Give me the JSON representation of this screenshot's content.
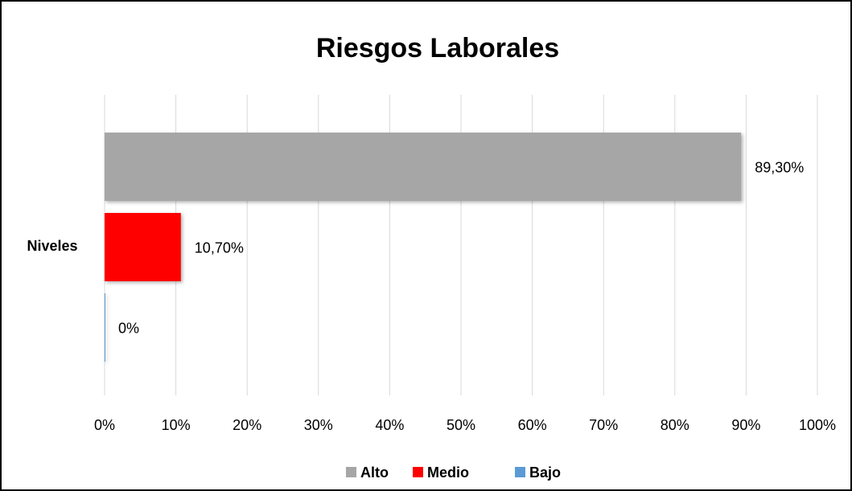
{
  "chart_data": {
    "type": "bar",
    "orientation": "horizontal",
    "title": "Riesgos Laborales",
    "categories": [
      "Niveles"
    ],
    "series": [
      {
        "name": "Alto",
        "color": "#a6a6a6",
        "values": [
          89.3
        ],
        "value_labels": [
          "89,30%"
        ]
      },
      {
        "name": "Medio",
        "color": "#ff0000",
        "values": [
          10.7
        ],
        "value_labels": [
          "10,70%"
        ]
      },
      {
        "name": "Bajo",
        "color": "#5b9bd5",
        "values": [
          0
        ],
        "value_labels": [
          "0%"
        ]
      }
    ],
    "xlim": [
      0,
      100
    ],
    "xticks": [
      {
        "value": 0,
        "label": "0%"
      },
      {
        "value": 10,
        "label": "10%"
      },
      {
        "value": 20,
        "label": "20%"
      },
      {
        "value": 30,
        "label": "30%"
      },
      {
        "value": 40,
        "label": "40%"
      },
      {
        "value": 50,
        "label": "50%"
      },
      {
        "value": 60,
        "label": "60%"
      },
      {
        "value": 70,
        "label": "70%"
      },
      {
        "value": 80,
        "label": "80%"
      },
      {
        "value": 90,
        "label": "90%"
      },
      {
        "value": 100,
        "label": "100%"
      }
    ],
    "grid": true,
    "legend": "bottom"
  }
}
